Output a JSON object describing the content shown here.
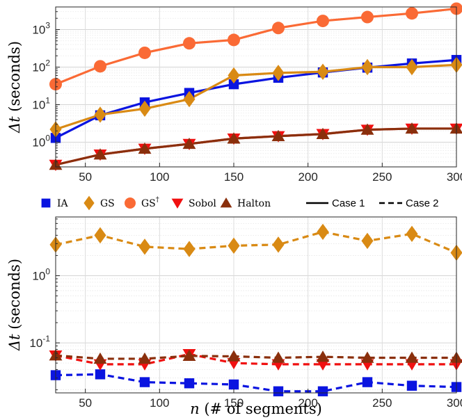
{
  "chart_data": [
    {
      "type": "line",
      "yscale": "log",
      "ylabel": "Δt (seconds)",
      "xlim": [
        30,
        300
      ],
      "ylim": [
        0.22,
        4000
      ],
      "x": [
        30,
        60,
        90,
        120,
        150,
        180,
        210,
        240,
        270,
        300
      ],
      "xticks": [
        50,
        100,
        150,
        200,
        250,
        300
      ],
      "xticklabels": [
        "50",
        "100",
        "150",
        "200",
        "250",
        "300"
      ],
      "yticks": [
        {
          "value": 1,
          "base": "10",
          "exp": "0"
        },
        {
          "value": 10,
          "base": "10",
          "exp": "1"
        },
        {
          "value": 100,
          "base": "10",
          "exp": "2"
        },
        {
          "value": 1000,
          "base": "10",
          "exp": "3"
        }
      ],
      "grid": true,
      "series": [
        {
          "name": "IA",
          "case": "Case 1",
          "color": "#0a14e0",
          "marker": "square",
          "values": [
            1.3,
            5.2,
            11.5,
            20.5,
            35,
            52,
            72,
            97,
            125,
            155
          ]
        },
        {
          "name": "GS",
          "case": "Case 1",
          "color": "#d98a14",
          "marker": "diamond",
          "values": [
            2.2,
            5.4,
            7.8,
            14,
            60,
            70,
            75,
            100,
            100,
            115
          ]
        },
        {
          "name": "GS†",
          "case": "Case 1",
          "color": "#fa6a35",
          "marker": "circle",
          "values": [
            35,
            105,
            240,
            430,
            530,
            1100,
            1700,
            2150,
            2700,
            3600
          ]
        },
        {
          "name": "Sobol",
          "case": "Case 1",
          "color": "#f01010",
          "marker": "triangle-down",
          "values": [
            0.25,
            0.47,
            0.67,
            0.9,
            1.25,
            1.45,
            1.65,
            2.15,
            2.3,
            2.3
          ]
        },
        {
          "name": "Halton",
          "case": "Case 1",
          "color": "#8a2f0c",
          "marker": "triangle-up",
          "values": [
            0.25,
            0.47,
            0.67,
            0.9,
            1.25,
            1.45,
            1.65,
            2.15,
            2.3,
            2.3
          ]
        }
      ]
    },
    {
      "type": "line",
      "yscale": "log",
      "ylabel": "Δt (seconds)",
      "xlabel": "n (# of segments)",
      "xlim": [
        30,
        300
      ],
      "ylim": [
        0.018,
        7.5
      ],
      "x": [
        30,
        60,
        90,
        120,
        150,
        180,
        210,
        240,
        270,
        300
      ],
      "xticks": [
        50,
        100,
        150,
        200,
        250,
        300
      ],
      "xticklabels": [
        "50",
        "100",
        "150",
        "200",
        "250",
        "300"
      ],
      "yticks": [
        {
          "value": 1,
          "base": "10",
          "exp": "0"
        },
        {
          "value": 0.1,
          "base": "10",
          "exp": "-1"
        }
      ],
      "grid": true,
      "series": [
        {
          "name": "IA",
          "case": "Case 2",
          "color": "#0a14e0",
          "marker": "square",
          "values": [
            0.033,
            0.034,
            0.026,
            0.025,
            0.024,
            0.019,
            0.019,
            0.026,
            0.023,
            0.022
          ]
        },
        {
          "name": "GS",
          "case": "Case 2",
          "color": "#d98a14",
          "marker": "diamond",
          "values": [
            2.9,
            4.0,
            2.7,
            2.5,
            2.8,
            2.9,
            4.5,
            3.3,
            4.2,
            2.2
          ]
        },
        {
          "name": "Sobol",
          "case": "Case 2",
          "color": "#f01010",
          "marker": "triangle-down",
          "values": [
            0.065,
            0.048,
            0.048,
            0.068,
            0.05,
            0.048,
            0.048,
            0.048,
            0.048,
            0.048
          ]
        },
        {
          "name": "Halton",
          "case": "Case 2",
          "color": "#8a2f0c",
          "marker": "triangle-up",
          "values": [
            0.065,
            0.058,
            0.058,
            0.064,
            0.063,
            0.06,
            0.062,
            0.06,
            0.06,
            0.06
          ]
        }
      ]
    }
  ],
  "legend": {
    "placement": "between-panels",
    "items": [
      {
        "label": "IA",
        "marker": "square",
        "color": "#0a14e0"
      },
      {
        "label": "GS",
        "marker": "diamond",
        "color": "#d98a14"
      },
      {
        "label": "GS",
        "sup": "†",
        "marker": "circle",
        "color": "#fa6a35"
      },
      {
        "label": "Sobol",
        "marker": "triangle-down",
        "color": "#f01010"
      },
      {
        "label": "Halton",
        "marker": "triangle-up",
        "color": "#8a2f0c"
      }
    ],
    "lines": [
      {
        "label": "Case 1",
        "style": "solid"
      },
      {
        "label": "Case 2",
        "style": "dashed"
      }
    ]
  }
}
